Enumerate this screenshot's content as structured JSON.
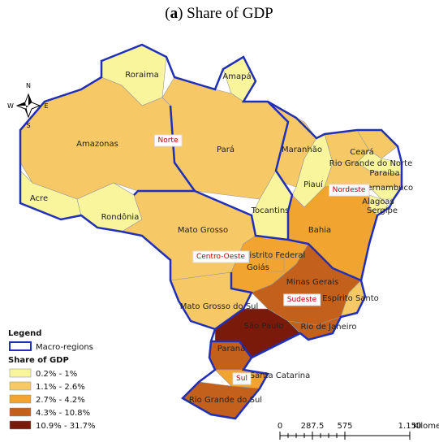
{
  "title": {
    "parts": [
      "(",
      "a",
      ") Share of GDP"
    ]
  },
  "compass": {
    "n": "N",
    "s": "S",
    "e": "E",
    "w": "W"
  },
  "regions": [
    "Norte",
    "Nordeste",
    "Centro-Oeste",
    "Sudeste",
    "Sul"
  ],
  "states": [
    {
      "name": "Roraima",
      "class": 0
    },
    {
      "name": "Amapá",
      "class": 0
    },
    {
      "name": "Amazonas",
      "class": 1
    },
    {
      "name": "Acre",
      "class": 0
    },
    {
      "name": "Rondônia",
      "class": 0
    },
    {
      "name": "Pará",
      "class": 1
    },
    {
      "name": "Maranhão",
      "class": 1
    },
    {
      "name": "Tocantins",
      "class": 0
    },
    {
      "name": "Piauí",
      "class": 0
    },
    {
      "name": "Ceará",
      "class": 1
    },
    {
      "name": "Rio Grande do Norte",
      "class": 1
    },
    {
      "name": "Paraíba",
      "class": 0
    },
    {
      "name": "Pernambuco",
      "class": 1
    },
    {
      "name": "Alagoas",
      "class": 0
    },
    {
      "name": "Sergipe",
      "class": 0
    },
    {
      "name": "Bahia",
      "class": 2
    },
    {
      "name": "Mato Grosso",
      "class": 1
    },
    {
      "name": "Goiás",
      "class": 2
    },
    {
      "name": "Distrito Federal",
      "class": 2
    },
    {
      "name": "Mato Grosso do Sul",
      "class": 1
    },
    {
      "name": "Minas Gerais",
      "class": 3
    },
    {
      "name": "Espírito Santo",
      "class": 1
    },
    {
      "name": "São Paulo",
      "class": 4
    },
    {
      "name": "Rio de Janeiro",
      "class": 3
    },
    {
      "name": "Paraná",
      "class": 3
    },
    {
      "name": "Santa Catarina",
      "class": 2
    },
    {
      "name": "Rio Grande do Sul",
      "class": 3
    }
  ],
  "legend": {
    "title": "Legend",
    "macro_label": "Macro-regions",
    "share_title": "Share of GDP",
    "classes": [
      {
        "label": "0.2% - 1%",
        "color": "#f9f59c"
      },
      {
        "label": "1.1% - 2.6%",
        "color": "#f6c866"
      },
      {
        "label": "2.7% - 4.2%",
        "color": "#f2a431"
      },
      {
        "label": "4.3% - 10.8%",
        "color": "#c3611c"
      },
      {
        "label": "10.9% - 31.7%",
        "color": "#7a1a0a"
      }
    ]
  },
  "scale": {
    "ticks": [
      0,
      287.5,
      575,
      {
        "value": 1150,
        "label": "1.150"
      }
    ],
    "unit": "Kilometers"
  }
}
